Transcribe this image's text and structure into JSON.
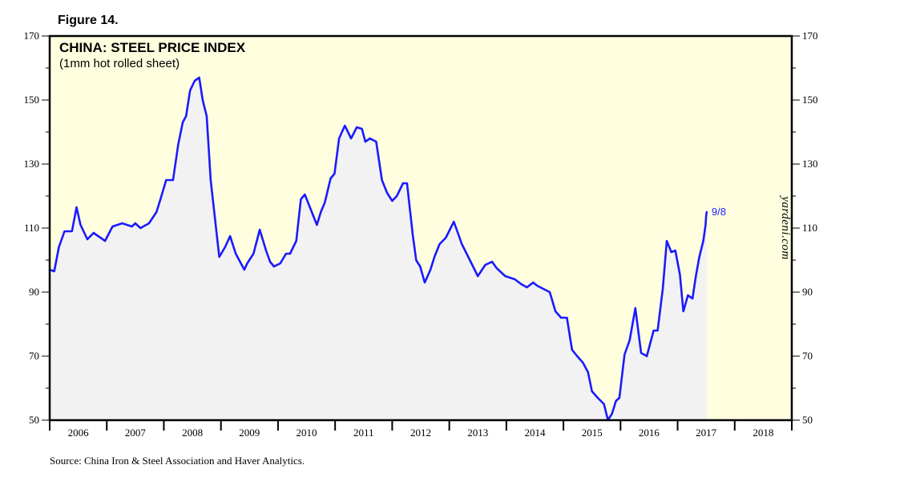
{
  "figure_label": "Figure 14.",
  "source": "Source: China Iron & Steel Association and Haver Analytics.",
  "watermark": "yardeni.com",
  "colors": {
    "plot_background": "#ffffe0",
    "series_fill": "#f2f2f2",
    "series_line": "#1a1aff",
    "axis": "#000000"
  },
  "chart_data": {
    "type": "area",
    "title": "CHINA: STEEL PRICE INDEX",
    "subtitle": "(1mm hot rolled sheet)",
    "xlabel": "",
    "ylabel": "",
    "xlim": [
      2005.98,
      2018.98
    ],
    "ylim": [
      50,
      170
    ],
    "y_ticks": [
      50,
      70,
      90,
      110,
      130,
      150,
      170
    ],
    "x_tick_labels": [
      "2006",
      "2007",
      "2008",
      "2009",
      "2010",
      "2011",
      "2012",
      "2013",
      "2014",
      "2015",
      "2016",
      "2017",
      "2018"
    ],
    "grid": false,
    "end_label": "9/8",
    "series": [
      {
        "x": [
          2005.98,
          2006.06,
          2006.14,
          2006.24,
          2006.37,
          2006.45,
          2006.52,
          2006.64,
          2006.75,
          2006.83,
          2006.95,
          2007.08,
          2007.25,
          2007.42,
          2007.48,
          2007.57,
          2007.72,
          2007.85,
          2007.92,
          2008.02,
          2008.14,
          2008.23,
          2008.31,
          2008.37,
          2008.44,
          2008.52,
          2008.6,
          2008.66,
          2008.73,
          2008.8,
          2008.95,
          2009.05,
          2009.14,
          2009.24,
          2009.33,
          2009.39,
          2009.44,
          2009.55,
          2009.66,
          2009.77,
          2009.84,
          2009.91,
          2010.02,
          2010.12,
          2010.19,
          2010.3,
          2010.38,
          2010.45,
          2010.55,
          2010.66,
          2010.73,
          2010.8,
          2010.9,
          2010.97,
          2011.05,
          2011.15,
          2011.26,
          2011.36,
          2011.45,
          2011.51,
          2011.59,
          2011.7,
          2011.8,
          2011.89,
          2011.98,
          2012.06,
          2012.17,
          2012.24,
          2012.34,
          2012.4,
          2012.47,
          2012.55,
          2012.65,
          2012.72,
          2012.81,
          2012.92,
          2013.06,
          2013.2,
          2013.34,
          2013.48,
          2013.61,
          2013.73,
          2013.81,
          2013.96,
          2014.13,
          2014.24,
          2014.34,
          2014.45,
          2014.52,
          2014.63,
          2014.74,
          2014.84,
          2014.94,
          2015.04,
          2015.13,
          2015.22,
          2015.32,
          2015.41,
          2015.48,
          2015.58,
          2015.69,
          2015.76,
          2015.83,
          2015.9,
          2015.96,
          2016.05,
          2016.14,
          2016.24,
          2016.34,
          2016.44,
          2016.56,
          2016.63,
          2016.72,
          2016.79,
          2016.87,
          2016.94,
          2017.02,
          2017.08,
          2017.16,
          2017.24,
          2017.3,
          2017.36,
          2017.43,
          2017.47,
          2017.48,
          2017.49
        ],
        "values": [
          97,
          96.5,
          104,
          109,
          109,
          116.5,
          111,
          106.5,
          108.5,
          107.5,
          106,
          110.5,
          111.5,
          110.5,
          111.5,
          110,
          111.5,
          115,
          119,
          125,
          125,
          136,
          143,
          145,
          153,
          156,
          157,
          150,
          145,
          125,
          101,
          104,
          107.5,
          102,
          99,
          97,
          99,
          102,
          109.5,
          103,
          99.5,
          98,
          99,
          102,
          102,
          106,
          119,
          120.5,
          116,
          111,
          115,
          118,
          125.5,
          127,
          138,
          142,
          138,
          141.5,
          141,
          137,
          138,
          137,
          125,
          121,
          118.5,
          120,
          124,
          124,
          108,
          100,
          98,
          93,
          97,
          101,
          105,
          107,
          112,
          105,
          100,
          95,
          98.5,
          99.5,
          97.5,
          95,
          94,
          92.5,
          91.5,
          93,
          92,
          91,
          90,
          84,
          82,
          82,
          72,
          70,
          68,
          65,
          59,
          57,
          55,
          50,
          52,
          56,
          57,
          70.5,
          75,
          85,
          71,
          70,
          78,
          78,
          91,
          106,
          102.5,
          103,
          95.5,
          84,
          89,
          88,
          95,
          101,
          106,
          111,
          114,
          115
        ]
      }
    ]
  }
}
